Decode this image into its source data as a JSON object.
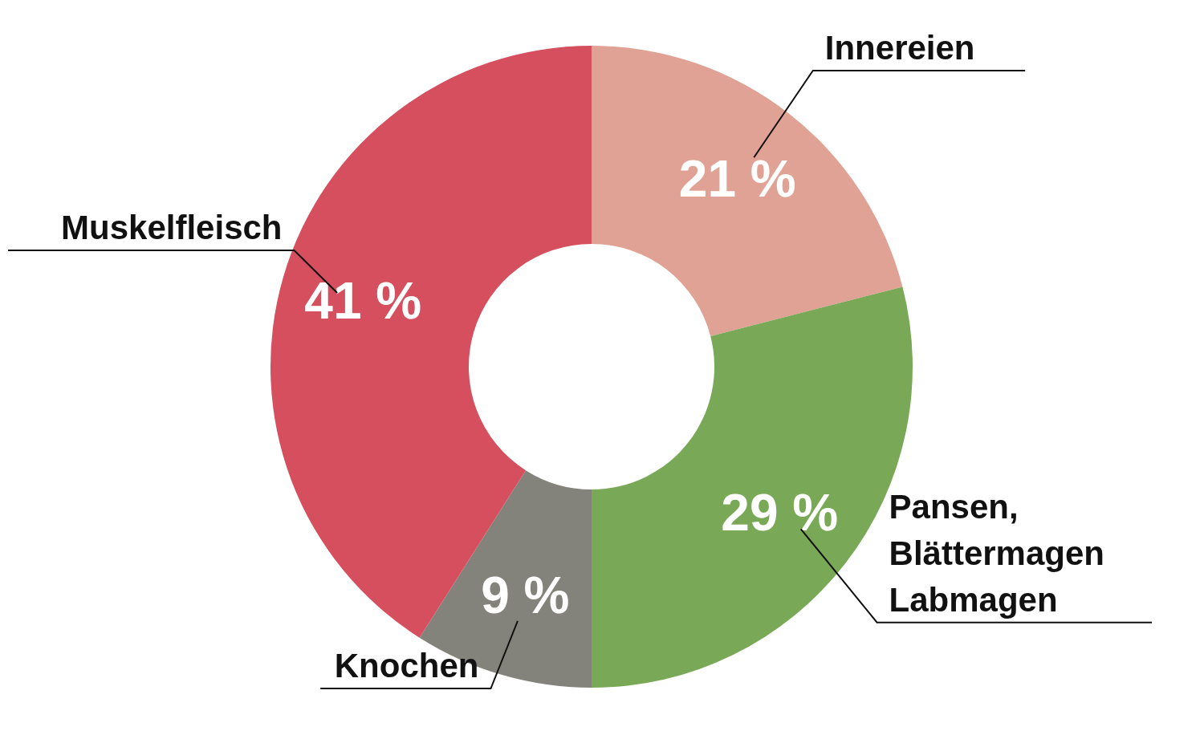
{
  "chart_data": {
    "type": "donut",
    "categories": [
      "Innereien",
      "Pansen, Blättermagen Labmagen",
      "Knochen",
      "Muskelfleisch"
    ],
    "values": [
      21,
      29,
      9,
      41
    ],
    "colors": [
      "#e0a294",
      "#79a857",
      "#84837b",
      "#d54f5f"
    ],
    "value_labels": [
      "21 %",
      "29 %",
      "9 %",
      "41 %"
    ]
  }
}
